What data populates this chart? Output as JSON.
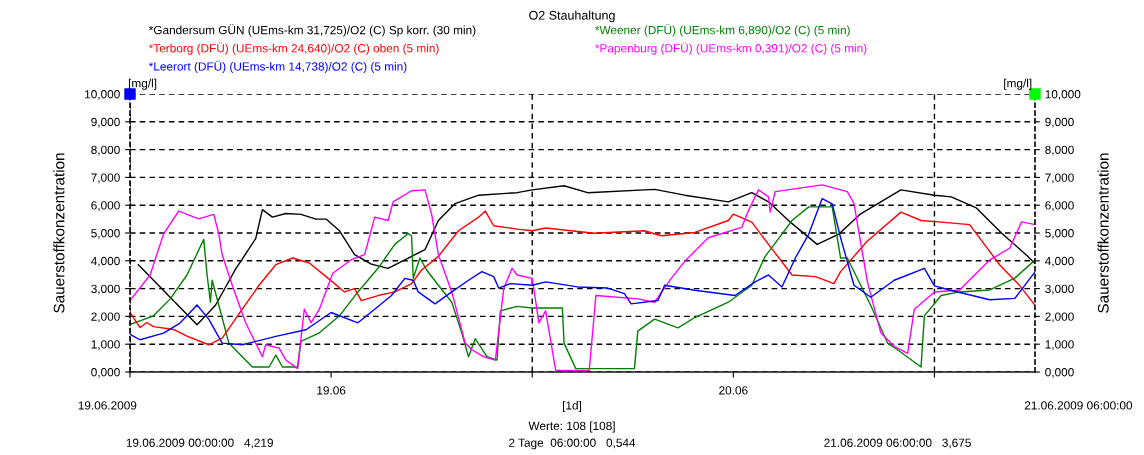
{
  "chart_data": {
    "type": "line",
    "title": "O2 Stauhaltung",
    "ylabel": "Sauerstoffkonzentration",
    "y2label": "Sauerstoffkonzentration",
    "xlim": [
      "2009-06-19T00:00",
      "2009-06-21T06:00"
    ],
    "xticks": [
      {
        "value": "2009-06-19T00:00",
        "label": null
      },
      {
        "value": "2009-06-19T12:00",
        "label": "19.06"
      },
      {
        "value": "2009-06-20T00:00",
        "label": null
      },
      {
        "value": "2009-06-20T12:00",
        "label": "20.06"
      },
      {
        "value": "2009-06-21T00:00",
        "label": null
      }
    ],
    "ylim": [
      0,
      10
    ],
    "yticks": [
      {
        "value": 0,
        "label": "0,000"
      },
      {
        "value": 1,
        "label": "1,000"
      },
      {
        "value": 2,
        "label": "2,000"
      },
      {
        "value": 3,
        "label": "3,000"
      },
      {
        "value": 4,
        "label": "4,000"
      },
      {
        "value": 5,
        "label": "5,000"
      },
      {
        "value": 6,
        "label": "6,000"
      },
      {
        "value": 7,
        "label": "7,000"
      },
      {
        "value": 8,
        "label": "8,000"
      },
      {
        "value": 9,
        "label": "9,000"
      },
      {
        "value": 10,
        "label": "10,000"
      }
    ],
    "y2lim": [
      0,
      10
    ],
    "y2ticks": [
      {
        "value": 0,
        "label": "0,000"
      },
      {
        "value": 1,
        "label": "1,000"
      },
      {
        "value": 2,
        "label": "2,000"
      },
      {
        "value": 3,
        "label": "3,000"
      },
      {
        "value": 4,
        "label": "4,000"
      },
      {
        "value": 5,
        "label": "5,000"
      },
      {
        "value": 6,
        "label": "6,000"
      },
      {
        "value": 7,
        "label": "7,000"
      },
      {
        "value": 8,
        "label": "8,000"
      },
      {
        "value": 9,
        "label": "9,000"
      },
      {
        "value": 10,
        "label": "10,000"
      }
    ],
    "grid": true,
    "legend": "top",
    "marker": "none",
    "line_style": "solid",
    "series": [
      {
        "name": "*Gandersum GÜN (UEms-km 31,725)/O2 (C) Sp korr. (30 min)",
        "color": "#000000",
        "x": [
          "2009-06-19T00:30",
          "2009-06-19T04:00",
          "2009-06-19T05:06",
          "2009-06-19T06:18",
          "2009-06-19T07:30",
          "2009-06-19T07:54",
          "2009-06-19T08:30",
          "2009-06-19T09:18",
          "2009-06-19T10:12",
          "2009-06-19T11:06",
          "2009-06-19T11:42",
          "2009-06-19T12:30",
          "2009-06-19T13:24",
          "2009-06-19T14:24",
          "2009-06-19T15:24",
          "2009-06-19T16:36",
          "2009-06-19T17:36",
          "2009-06-19T18:24",
          "2009-06-19T19:24",
          "2009-06-19T20:48",
          "2009-06-19T23:06",
          "2009-06-20T00:00",
          "2009-06-20T01:54",
          "2009-06-20T03:18",
          "2009-06-20T07:18",
          "2009-06-20T09:06",
          "2009-06-20T11:42",
          "2009-06-20T13:06",
          "2009-06-20T14:06",
          "2009-06-20T15:24",
          "2009-06-20T17:00",
          "2009-06-20T18:18",
          "2009-06-20T19:36",
          "2009-06-20T22:00",
          "2009-06-21T00:00",
          "2009-06-21T01:00",
          "2009-06-21T02:30",
          "2009-06-21T04:00",
          "2009-06-21T05:30",
          "2009-06-21T06:00"
        ],
        "values": [
          3.86,
          1.7,
          2.4,
          3.7,
          4.8,
          5.84,
          5.57,
          5.7,
          5.67,
          5.5,
          5.5,
          5.08,
          4.22,
          3.88,
          3.73,
          4.1,
          4.4,
          5.45,
          6.06,
          6.36,
          6.45,
          6.55,
          6.7,
          6.45,
          6.57,
          6.36,
          6.12,
          6.45,
          6.12,
          5.39,
          4.59,
          4.96,
          5.69,
          6.55,
          6.36,
          6.3,
          5.9,
          5.0,
          4.2,
          3.9
        ]
      },
      {
        "name": "*Weener (DFÜ) (UEms-km 6,890)/O2 (C) (5 min)",
        "color": "#008000",
        "x": [
          "2009-06-19T00:00",
          "2009-06-19T01:24",
          "2009-06-19T02:24",
          "2009-06-19T03:24",
          "2009-06-19T04:24",
          "2009-06-19T04:36",
          "2009-06-19T04:48",
          "2009-06-19T04:54",
          "2009-06-19T05:18",
          "2009-06-19T05:54",
          "2009-06-19T07:18",
          "2009-06-19T08:18",
          "2009-06-19T08:42",
          "2009-06-19T09:06",
          "2009-06-19T10:00",
          "2009-06-19T10:12",
          "2009-06-19T11:18",
          "2009-06-19T12:30",
          "2009-06-19T13:36",
          "2009-06-19T14:48",
          "2009-06-19T15:48",
          "2009-06-19T16:36",
          "2009-06-19T16:48",
          "2009-06-19T16:54",
          "2009-06-19T17:18",
          "2009-06-19T17:42",
          "2009-06-19T18:24",
          "2009-06-19T19:12",
          "2009-06-19T19:48",
          "2009-06-19T20:12",
          "2009-06-19T20:36",
          "2009-06-19T21:18",
          "2009-06-19T21:54",
          "2009-06-19T22:06",
          "2009-06-19T23:06",
          "2009-06-20T00:00",
          "2009-06-20T01:48",
          "2009-06-20T01:54",
          "2009-06-20T02:36",
          "2009-06-20T06:06",
          "2009-06-20T06:18",
          "2009-06-20T07:18",
          "2009-06-20T08:42",
          "2009-06-20T09:42",
          "2009-06-20T11:42",
          "2009-06-20T13:06",
          "2009-06-20T13:54",
          "2009-06-20T14:54",
          "2009-06-20T15:30",
          "2009-06-20T16:30",
          "2009-06-20T17:54",
          "2009-06-20T18:24",
          "2009-06-20T18:48",
          "2009-06-20T20:12",
          "2009-06-20T21:12",
          "2009-06-20T21:48",
          "2009-06-20T23:12",
          "2009-06-20T23:24",
          "2009-06-21T00:24",
          "2009-06-21T01:30",
          "2009-06-21T03:18",
          "2009-06-21T04:48",
          "2009-06-21T06:00"
        ],
        "values": [
          1.71,
          2.02,
          2.63,
          3.49,
          4.77,
          3.49,
          2.51,
          3.3,
          2.4,
          1.04,
          0.18,
          0.18,
          0.61,
          0.18,
          0.18,
          1.1,
          1.41,
          2.02,
          2.88,
          3.73,
          4.59,
          4.98,
          4.9,
          3.37,
          4.1,
          3.67,
          3.12,
          2.51,
          1.4,
          0.55,
          1.2,
          0.55,
          0.43,
          2.2,
          2.36,
          2.3,
          2.3,
          1.04,
          0.12,
          0.12,
          1.47,
          1.9,
          1.59,
          1.96,
          2.51,
          3.12,
          4.16,
          4.96,
          5.45,
          5.94,
          5.94,
          4.1,
          4.1,
          2.39,
          1.04,
          0.8,
          0.18,
          2.02,
          2.75,
          2.88,
          2.95,
          3.38,
          4.03
        ]
      },
      {
        "name": "*Terborg (DFÜ) (UEms-km 24,640)/O2 (C) oben (5 min)",
        "color": "#ff0000",
        "x": [
          "2009-06-19T00:00",
          "2009-06-19T00:36",
          "2009-06-19T01:00",
          "2009-06-19T01:24",
          "2009-06-19T02:36",
          "2009-06-19T03:24",
          "2009-06-19T04:42",
          "2009-06-19T05:30",
          "2009-06-19T06:42",
          "2009-06-19T07:42",
          "2009-06-19T08:42",
          "2009-06-19T09:42",
          "2009-06-19T10:42",
          "2009-06-19T11:42",
          "2009-06-19T12:48",
          "2009-06-19T13:24",
          "2009-06-19T13:48",
          "2009-06-19T14:48",
          "2009-06-19T15:48",
          "2009-06-19T16:48",
          "2009-06-19T17:24",
          "2009-06-19T18:24",
          "2009-06-19T19:36",
          "2009-06-19T20:48",
          "2009-06-19T21:12",
          "2009-06-19T21:42",
          "2009-06-19T23:06",
          "2009-06-20T00:00",
          "2009-06-20T00:48",
          "2009-06-20T03:42",
          "2009-06-20T06:42",
          "2009-06-20T07:42",
          "2009-06-20T09:42",
          "2009-06-20T11:42",
          "2009-06-20T12:00",
          "2009-06-20T13:06",
          "2009-06-20T14:06",
          "2009-06-20T15:30",
          "2009-06-20T16:54",
          "2009-06-20T18:00",
          "2009-06-20T18:24",
          "2009-06-20T20:00",
          "2009-06-20T22:00",
          "2009-06-20T23:12",
          "2009-06-21T00:24",
          "2009-06-21T02:06",
          "2009-06-21T03:54",
          "2009-06-21T05:06",
          "2009-06-21T06:00"
        ],
        "values": [
          2.14,
          1.6,
          1.78,
          1.63,
          1.53,
          1.29,
          0.98,
          1.22,
          2.26,
          3.12,
          3.86,
          4.1,
          3.92,
          3.43,
          2.88,
          3.0,
          2.57,
          2.75,
          2.88,
          3.18,
          3.67,
          4.16,
          5.08,
          5.57,
          5.79,
          5.26,
          5.14,
          5.08,
          5.18,
          4.99,
          5.08,
          4.9,
          5.02,
          5.45,
          5.68,
          5.39,
          4.59,
          3.49,
          3.43,
          3.18,
          3.61,
          4.71,
          5.75,
          5.45,
          5.39,
          5.3,
          3.85,
          3.1,
          2.4
        ]
      },
      {
        "name": "*Papenburg (DFÜ) (UEms-km 0,391)/O2 (C) (5 min)",
        "color": "#ff00ff",
        "x": [
          "2009-06-19T00:00",
          "2009-06-19T01:12",
          "2009-06-19T02:00",
          "2009-06-19T02:54",
          "2009-06-19T04:06",
          "2009-06-19T05:00",
          "2009-06-19T05:18",
          "2009-06-19T05:30",
          "2009-06-19T06:06",
          "2009-06-19T06:54",
          "2009-06-19T07:54",
          "2009-06-19T08:06",
          "2009-06-19T08:54",
          "2009-06-19T09:18",
          "2009-06-19T10:00",
          "2009-06-19T10:24",
          "2009-06-19T10:48",
          "2009-06-19T11:18",
          "2009-06-19T12:06",
          "2009-06-19T13:12",
          "2009-06-19T14:00",
          "2009-06-19T14:36",
          "2009-06-19T15:24",
          "2009-06-19T15:42",
          "2009-06-19T16:48",
          "2009-06-19T17:36",
          "2009-06-19T18:00",
          "2009-06-19T18:24",
          "2009-06-19T19:12",
          "2009-06-19T20:00",
          "2009-06-19T20:24",
          "2009-06-19T21:06",
          "2009-06-19T21:48",
          "2009-06-19T22:18",
          "2009-06-19T22:48",
          "2009-06-19T23:06",
          "2009-06-20T00:00",
          "2009-06-20T00:24",
          "2009-06-20T00:48",
          "2009-06-20T01:24",
          "2009-06-20T03:24",
          "2009-06-20T03:48",
          "2009-06-20T06:18",
          "2009-06-20T07:18",
          "2009-06-20T08:18",
          "2009-06-20T09:06",
          "2009-06-20T10:30",
          "2009-06-20T12:30",
          "2009-06-20T12:54",
          "2009-06-20T13:30",
          "2009-06-20T14:06",
          "2009-06-20T14:12",
          "2009-06-20T14:30",
          "2009-06-20T17:18",
          "2009-06-20T18:48",
          "2009-06-20T19:12",
          "2009-06-20T20:00",
          "2009-06-20T20:48",
          "2009-06-20T21:36",
          "2009-06-20T22:24",
          "2009-06-20T22:48",
          "2009-06-21T00:00",
          "2009-06-21T01:30",
          "2009-06-21T03:18",
          "2009-06-21T04:30",
          "2009-06-21T05:12",
          "2009-06-21T06:00"
        ],
        "values": [
          2.57,
          3.49,
          4.96,
          5.79,
          5.51,
          5.67,
          4.96,
          4.22,
          3.12,
          1.77,
          0.55,
          0.98,
          0.86,
          0.43,
          0.12,
          2.26,
          1.77,
          2.26,
          3.55,
          4.04,
          4.22,
          5.57,
          5.45,
          6.12,
          6.52,
          6.55,
          5.67,
          4.22,
          2.88,
          1.04,
          0.8,
          0.55,
          0.43,
          3.0,
          3.73,
          3.49,
          3.37,
          1.77,
          2.2,
          0.06,
          0.06,
          2.75,
          2.63,
          2.51,
          3.37,
          3.98,
          4.83,
          5.2,
          5.8,
          6.55,
          6.3,
          5.75,
          6.49,
          6.73,
          6.49,
          6.06,
          3.24,
          1.41,
          0.92,
          0.67,
          2.26,
          2.88,
          2.95,
          4.03,
          4.46,
          5.4,
          5.3
        ]
      },
      {
        "name": "*Leerort (DFÜ) (UEms-km 14,738)/O2 (C) (5 min)",
        "color": "#0000ff",
        "x": [
          "2009-06-19T00:00",
          "2009-06-19T00:36",
          "2009-06-19T02:00",
          "2009-06-19T03:00",
          "2009-06-19T04:00",
          "2009-06-19T04:42",
          "2009-06-19T05:30",
          "2009-06-19T06:42",
          "2009-06-19T08:42",
          "2009-06-19T10:30",
          "2009-06-19T12:00",
          "2009-06-19T13:36",
          "2009-06-19T14:36",
          "2009-06-19T15:36",
          "2009-06-19T16:24",
          "2009-06-19T16:54",
          "2009-06-19T17:12",
          "2009-06-19T18:12",
          "2009-06-19T19:12",
          "2009-06-19T20:12",
          "2009-06-19T21:00",
          "2009-06-19T21:42",
          "2009-06-19T22:00",
          "2009-06-19T22:42",
          "2009-06-20T00:00",
          "2009-06-20T00:48",
          "2009-06-20T02:42",
          "2009-06-20T04:30",
          "2009-06-20T05:30",
          "2009-06-20T05:54",
          "2009-06-20T07:30",
          "2009-06-20T07:54",
          "2009-06-20T09:42",
          "2009-06-20T12:06",
          "2009-06-20T13:18",
          "2009-06-20T14:06",
          "2009-06-20T14:54",
          "2009-06-20T15:42",
          "2009-06-20T16:30",
          "2009-06-20T17:18",
          "2009-06-20T17:54",
          "2009-06-20T18:24",
          "2009-06-20T19:12",
          "2009-06-20T20:12",
          "2009-06-20T21:36",
          "2009-06-20T23:24",
          "2009-06-21T00:00",
          "2009-06-21T00:54",
          "2009-06-21T03:18",
          "2009-06-21T04:48",
          "2009-06-21T06:00"
        ],
        "values": [
          1.35,
          1.16,
          1.4,
          1.77,
          2.41,
          1.9,
          1.04,
          0.98,
          1.28,
          1.52,
          2.14,
          1.77,
          2.26,
          2.75,
          3.37,
          3.3,
          2.88,
          2.45,
          2.88,
          3.3,
          3.61,
          3.43,
          3.02,
          3.18,
          3.12,
          3.24,
          3.06,
          3.02,
          2.82,
          2.45,
          2.57,
          3.12,
          2.94,
          2.75,
          3.24,
          3.49,
          3.06,
          4.1,
          4.96,
          6.24,
          6.05,
          4.83,
          3.12,
          2.69,
          3.3,
          3.73,
          3.1,
          2.95,
          2.6,
          2.65,
          3.6
        ]
      }
    ],
    "annotations": [
      "[mg/l]",
      "[mg/l]",
      "19.06.2009",
      "21.06.2009 06:00:00",
      "[1d]",
      "Werte: 108 [108]",
      "19.06.2009 00:00:00   4,219",
      "2 Tage  06:00:00   0,544",
      "21.06.2009 06:00:00   3,675"
    ]
  }
}
